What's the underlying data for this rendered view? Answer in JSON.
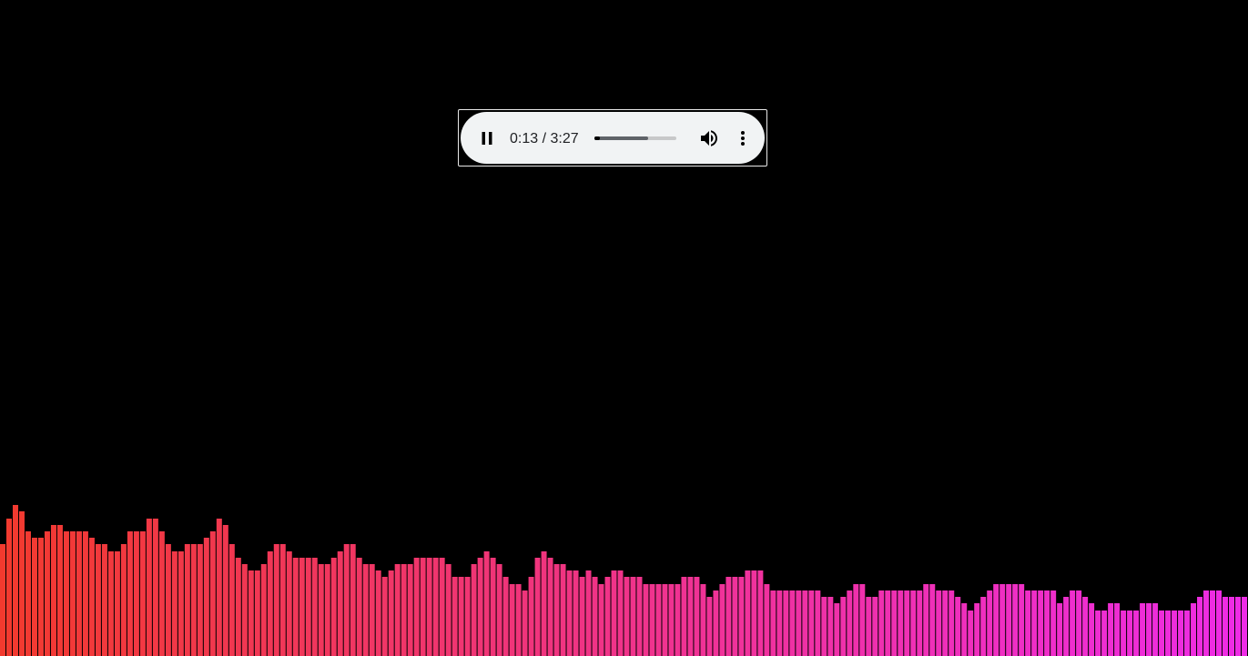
{
  "player": {
    "state": "playing",
    "current_time": "0:13",
    "duration": "3:27",
    "time_separator": "/",
    "played_fraction": 0.063,
    "buffered_fraction": 0.66,
    "play_pause_icon": "pause-icon",
    "volume_icon": "volume-up-icon",
    "menu_icon": "more-vert-icon"
  },
  "visualizer": {
    "bar_count": 196,
    "color_start": "#f23a2e",
    "color_end": "#ee2ce6",
    "gap_color": "#000000",
    "levels": [
      0.17,
      0.21,
      0.23,
      0.22,
      0.19,
      0.18,
      0.18,
      0.19,
      0.2,
      0.2,
      0.19,
      0.19,
      0.19,
      0.19,
      0.18,
      0.17,
      0.17,
      0.16,
      0.16,
      0.17,
      0.19,
      0.19,
      0.19,
      0.21,
      0.21,
      0.19,
      0.17,
      0.16,
      0.16,
      0.17,
      0.17,
      0.17,
      0.18,
      0.19,
      0.21,
      0.2,
      0.17,
      0.15,
      0.14,
      0.13,
      0.13,
      0.14,
      0.16,
      0.17,
      0.17,
      0.16,
      0.15,
      0.15,
      0.15,
      0.15,
      0.14,
      0.14,
      0.15,
      0.16,
      0.17,
      0.17,
      0.15,
      0.14,
      0.14,
      0.13,
      0.12,
      0.13,
      0.14,
      0.14,
      0.14,
      0.15,
      0.15,
      0.15,
      0.15,
      0.15,
      0.14,
      0.12,
      0.12,
      0.12,
      0.14,
      0.15,
      0.16,
      0.15,
      0.14,
      0.12,
      0.11,
      0.11,
      0.1,
      0.12,
      0.15,
      0.16,
      0.15,
      0.14,
      0.14,
      0.13,
      0.13,
      0.12,
      0.13,
      0.12,
      0.11,
      0.12,
      0.13,
      0.13,
      0.12,
      0.12,
      0.12,
      0.11,
      0.11,
      0.11,
      0.11,
      0.11,
      0.11,
      0.12,
      0.12,
      0.12,
      0.11,
      0.09,
      0.1,
      0.11,
      0.12,
      0.12,
      0.12,
      0.13,
      0.13,
      0.13,
      0.11,
      0.1,
      0.1,
      0.1,
      0.1,
      0.1,
      0.1,
      0.1,
      0.1,
      0.09,
      0.09,
      0.08,
      0.09,
      0.1,
      0.11,
      0.11,
      0.09,
      0.09,
      0.1,
      0.1,
      0.1,
      0.1,
      0.1,
      0.1,
      0.1,
      0.11,
      0.11,
      0.1,
      0.1,
      0.1,
      0.09,
      0.08,
      0.07,
      0.08,
      0.09,
      0.1,
      0.11,
      0.11,
      0.11,
      0.11,
      0.11,
      0.1,
      0.1,
      0.1,
      0.1,
      0.1,
      0.08,
      0.09,
      0.1,
      0.1,
      0.09,
      0.08,
      0.07,
      0.07,
      0.08,
      0.08,
      0.07,
      0.07,
      0.07,
      0.08,
      0.08,
      0.08,
      0.07,
      0.07,
      0.07,
      0.07,
      0.07,
      0.08,
      0.09,
      0.1,
      0.1,
      0.1,
      0.09,
      0.09,
      0.09,
      0.09
    ]
  }
}
